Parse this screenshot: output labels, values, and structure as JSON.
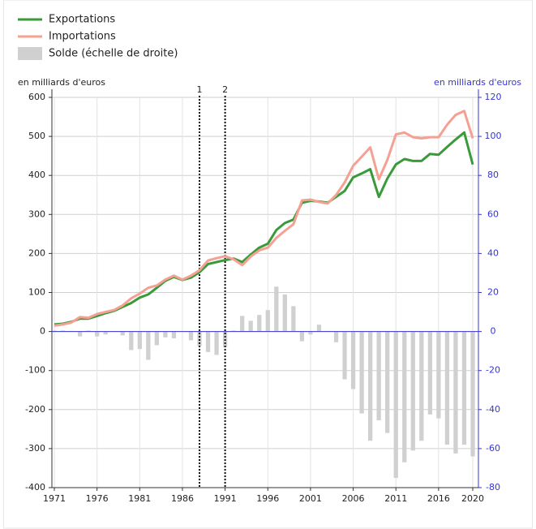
{
  "chart_data": {
    "type": "line",
    "x": [
      1971,
      1972,
      1973,
      1974,
      1975,
      1976,
      1977,
      1978,
      1979,
      1980,
      1981,
      1982,
      1983,
      1984,
      1985,
      1986,
      1987,
      1988,
      1989,
      1990,
      1991,
      1992,
      1993,
      1994,
      1995,
      1996,
      1997,
      1998,
      1999,
      2000,
      2001,
      2002,
      2003,
      2004,
      2005,
      2006,
      2007,
      2008,
      2009,
      2010,
      2011,
      2012,
      2013,
      2014,
      2015,
      2016,
      2017,
      2018,
      2019,
      2020
    ],
    "series": [
      {
        "name": "Exportations",
        "color": "#3a9a3a",
        "type": "line",
        "values": [
          18,
          20,
          25,
          33,
          33,
          40,
          47,
          53,
          63,
          73,
          87,
          95,
          112,
          130,
          140,
          132,
          138,
          152,
          173,
          178,
          183,
          187,
          178,
          197,
          215,
          225,
          260,
          278,
          287,
          330,
          335,
          333,
          330,
          345,
          360,
          395,
          405,
          416,
          345,
          392,
          428,
          442,
          437,
          437,
          455,
          453,
          473,
          492,
          510,
          428
        ]
      },
      {
        "name": "Importations",
        "color": "#f4a093",
        "type": "line",
        "values": [
          15,
          18,
          23,
          37,
          35,
          45,
          50,
          55,
          67,
          85,
          97,
          112,
          118,
          133,
          143,
          133,
          143,
          157,
          182,
          188,
          193,
          185,
          170,
          192,
          208,
          215,
          240,
          258,
          275,
          336,
          338,
          332,
          328,
          350,
          382,
          425,
          448,
          472,
          390,
          440,
          505,
          510,
          498,
          495,
          498,
          498,
          530,
          555,
          565,
          495
        ]
      },
      {
        "name": "Solde (échelle de droite)",
        "color": "#d0d0d0",
        "type": "bar",
        "axis": "y2",
        "values": [
          0.5,
          0.5,
          0.3,
          -2.5,
          0.5,
          -2.5,
          -1.5,
          0.2,
          -2,
          -9.5,
          -9,
          -14.5,
          -7,
          -3,
          -3.5,
          0,
          -4.5,
          -7.5,
          -10.5,
          -12,
          -8,
          0.5,
          8,
          5.5,
          8.5,
          11,
          23,
          19,
          13,
          -5,
          -1.5,
          3.5,
          0.3,
          -5.5,
          -24.5,
          -29.5,
          -42,
          -56,
          -45.5,
          -52,
          -75,
          -67,
          -61,
          -56,
          -42.5,
          -44.5,
          -58,
          -62.5,
          -58,
          -64
        ]
      }
    ],
    "y_label": "en milliards d'euros",
    "y2_label": "en milliards d'euros",
    "xlim": [
      1971,
      2020
    ],
    "xticks": [
      1971,
      1976,
      1981,
      1986,
      1991,
      1996,
      2001,
      2006,
      2011,
      2016,
      2020
    ],
    "ylim": [
      -400,
      600
    ],
    "yticks": [
      -400,
      -300,
      -200,
      -100,
      0,
      100,
      200,
      300,
      400,
      500,
      600
    ],
    "y2lim": [
      -80,
      120
    ],
    "y2ticks": [
      -80,
      -60,
      -40,
      -20,
      0,
      20,
      40,
      60,
      80,
      100,
      120
    ],
    "y2_color": "#3535d0",
    "grid": true,
    "legend": "top-left",
    "annotations": [
      {
        "x": 1988,
        "label": "1"
      },
      {
        "x": 1991,
        "label": "2"
      }
    ]
  }
}
